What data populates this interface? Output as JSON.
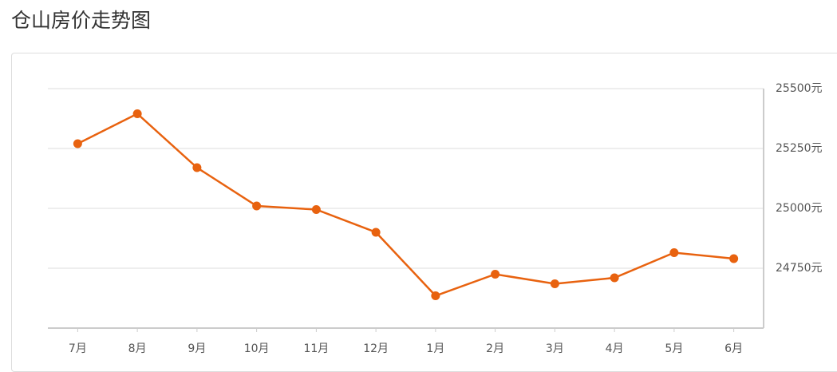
{
  "chart_data": {
    "type": "line",
    "title": "仓山房价走势图",
    "categories": [
      "7月",
      "8月",
      "9月",
      "10月",
      "11月",
      "12月",
      "1月",
      "2月",
      "3月",
      "4月",
      "5月",
      "6月"
    ],
    "series": [
      {
        "name": "仓山",
        "color": "#e8620f",
        "values": [
          25270,
          25395,
          25170,
          25010,
          24995,
          24900,
          24635,
          24725,
          24685,
          24710,
          24815,
          24790
        ]
      }
    ],
    "ylim": [
      24500,
      25500
    ],
    "yticks": [
      {
        "value": 24750,
        "label": "24750元"
      },
      {
        "value": 25000,
        "label": "25000元"
      },
      {
        "value": 25250,
        "label": "25250元"
      },
      {
        "value": 25500,
        "label": "25500元"
      }
    ],
    "grid": true
  }
}
